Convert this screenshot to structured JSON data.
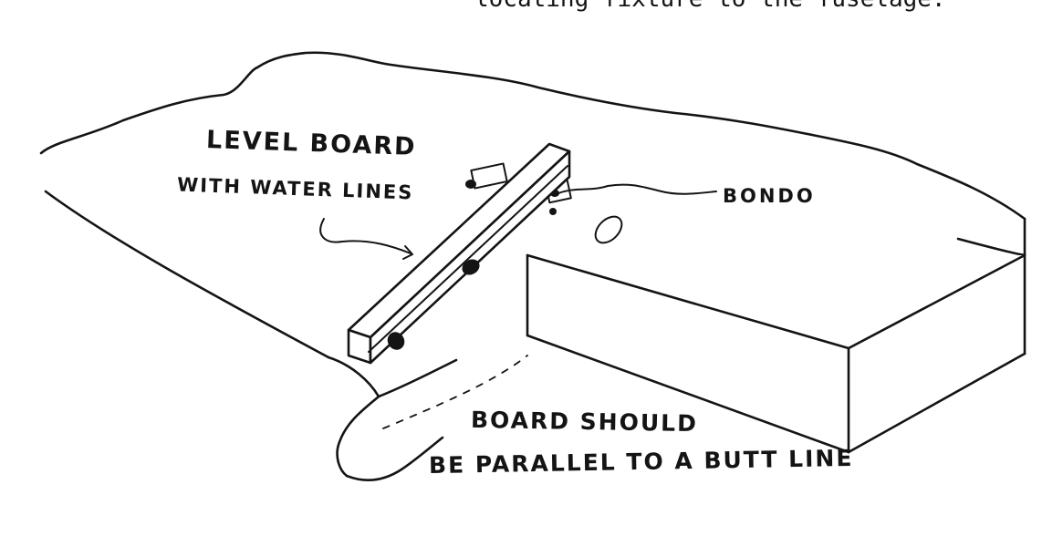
{
  "header": {
    "text": "locating fixture to the fuselage."
  },
  "labels": {
    "level_board_line1": "LEVEL BOARD",
    "level_board_line2": "WITH WATER LINES",
    "bondo": "BONDO",
    "board_note_line1": "BOARD SHOULD",
    "board_note_line2": "BE PARALLEL TO A BUTT LINE"
  },
  "colors": {
    "ink": "#141414",
    "paper": "#ffffff"
  }
}
